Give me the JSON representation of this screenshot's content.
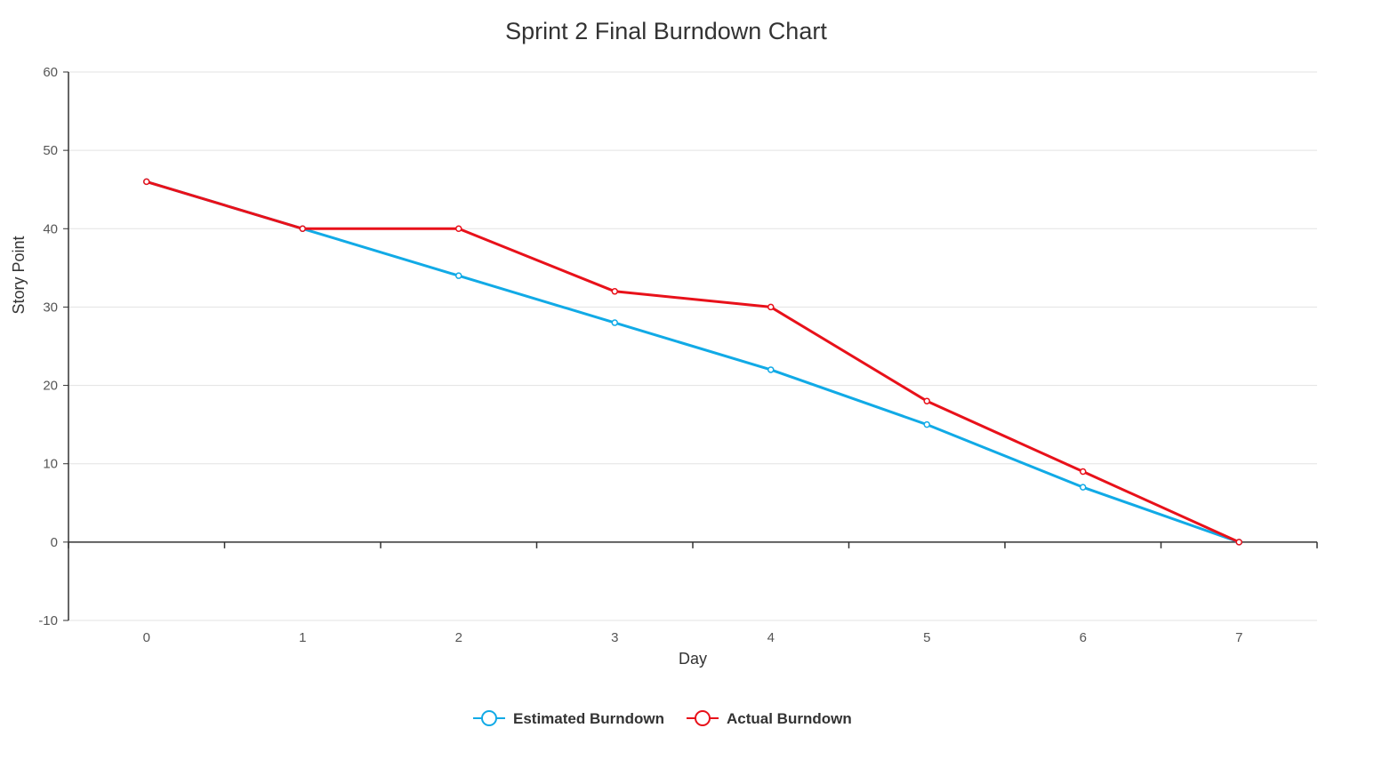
{
  "chart_data": {
    "type": "line",
    "title": "Sprint 2 Final Burndown Chart",
    "xlabel": "Day",
    "ylabel": "Story Point",
    "x": [
      0,
      1,
      2,
      3,
      4,
      5,
      6,
      7
    ],
    "ylim": [
      -10,
      60
    ],
    "yticks": [
      -10,
      0,
      10,
      20,
      30,
      40,
      50,
      60
    ],
    "grid": true,
    "legend_position": "bottom",
    "series": [
      {
        "name": "Estimated Burndown",
        "color": "#11aae6",
        "values": [
          46,
          40,
          34,
          28,
          22,
          15,
          7,
          0
        ]
      },
      {
        "name": "Actual Burndown",
        "color": "#e8111a",
        "values": [
          46,
          40,
          40,
          32,
          30,
          18,
          9,
          0
        ]
      }
    ]
  }
}
